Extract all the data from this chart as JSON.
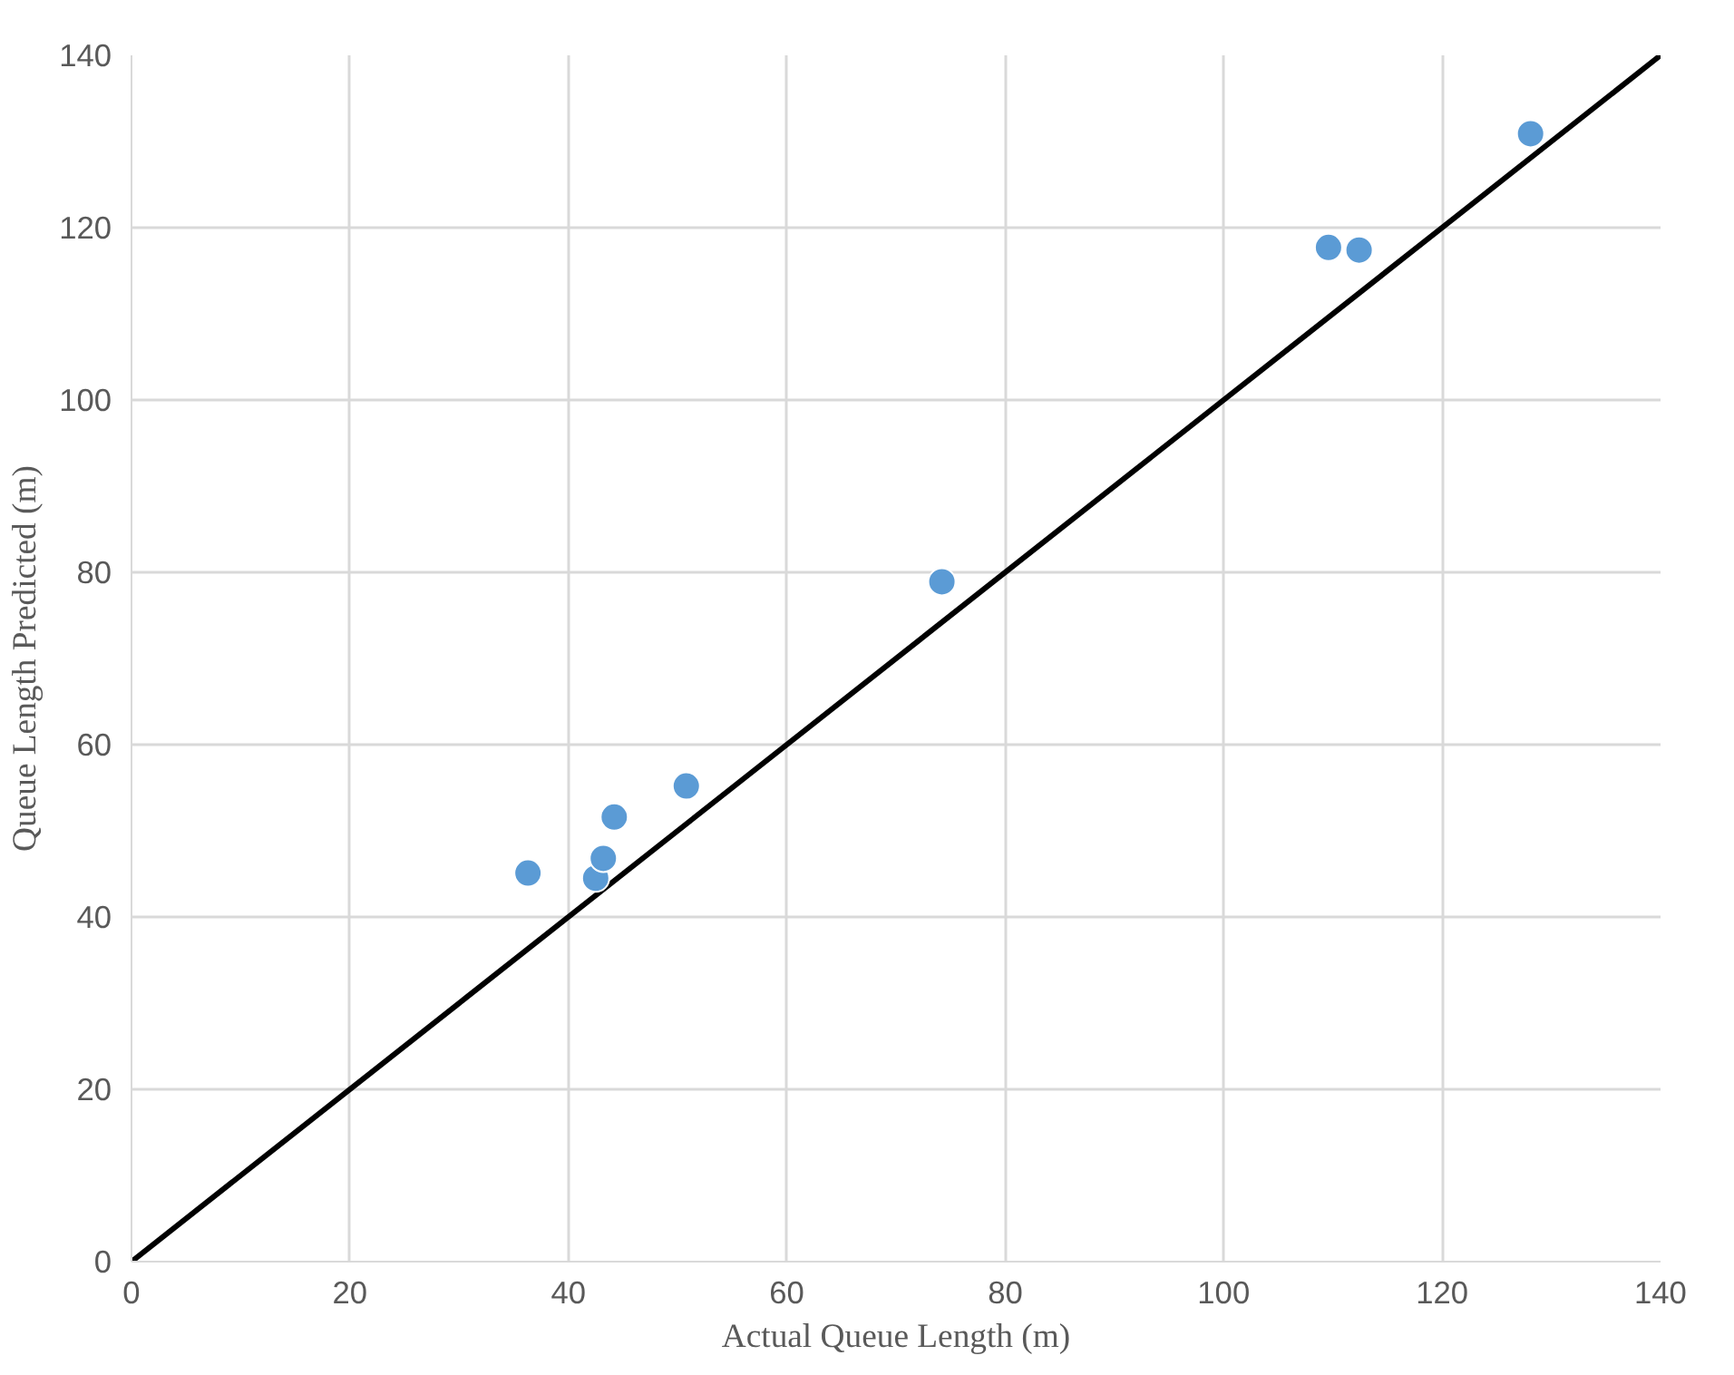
{
  "chart_data": {
    "type": "scatter",
    "xlabel": "Actual Queue Length (m)",
    "ylabel": "Queue Length Predicted (m)",
    "xlim": [
      0,
      140
    ],
    "ylim": [
      0,
      140
    ],
    "xticks": [
      0,
      20,
      40,
      60,
      80,
      100,
      120,
      140
    ],
    "yticks": [
      0,
      20,
      40,
      60,
      80,
      100,
      120,
      140
    ],
    "grid": true,
    "series": [
      {
        "marker": "circle",
        "color": "#5b9bd5",
        "x": [
          36.3,
          42.5,
          43.2,
          44.2,
          50.8,
          74.2,
          109.6,
          112.4,
          128.1
        ],
        "values": [
          45.1,
          44.5,
          46.8,
          51.6,
          55.2,
          78.9,
          117.7,
          117.4,
          130.9
        ]
      },
      {
        "type": "line",
        "color": "#000000",
        "x": [
          0,
          140
        ],
        "values": [
          0,
          140
        ]
      }
    ]
  }
}
